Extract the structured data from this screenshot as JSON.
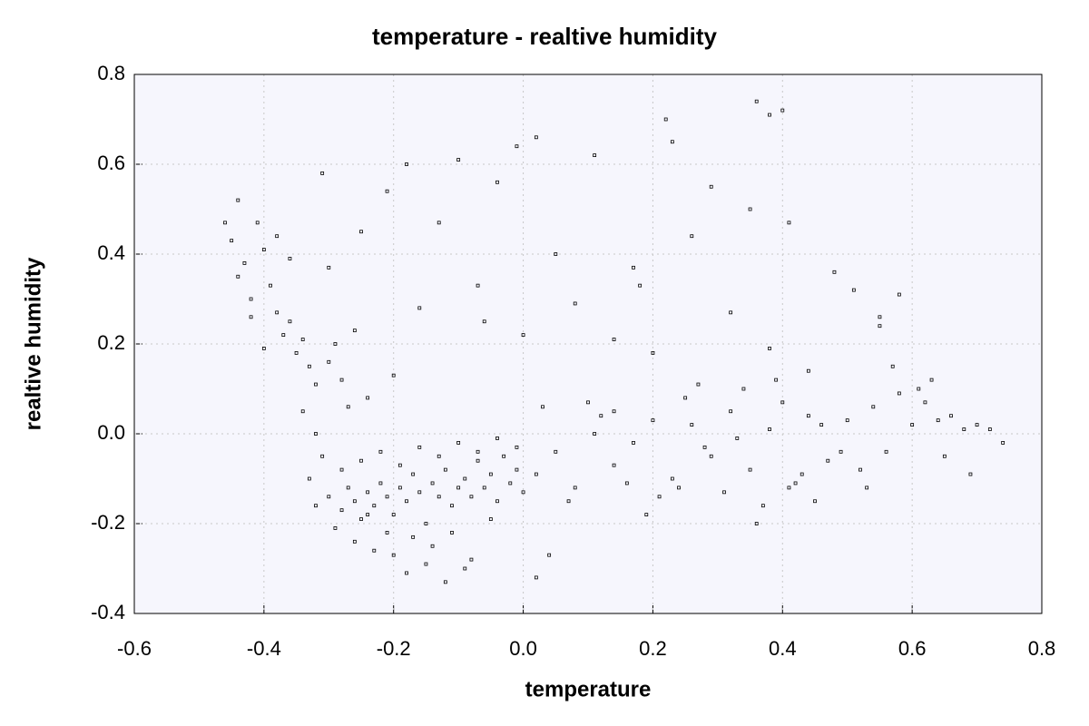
{
  "chart_data": {
    "type": "scatter",
    "title": "temperature - realtive humidity",
    "x_label": "temperature",
    "y_label": "realtive humidity",
    "color": "#000000",
    "grid": true,
    "xlim": [
      -0.6,
      0.8
    ],
    "ylim": [
      -0.4,
      0.8
    ],
    "xticks": [
      -0.6,
      -0.4,
      -0.2,
      {
        "value": 0,
        "label": "0.0"
      },
      0.2,
      0.4,
      0.6,
      0.8
    ],
    "yticks": [
      -0.4,
      -0.2,
      {
        "value": 0,
        "label": "0.0"
      },
      0.2,
      0.4,
      0.6,
      0.8
    ],
    "x": [
      -0.3,
      -0.28,
      -0.27,
      -0.26,
      -0.25,
      -0.24,
      -0.23,
      -0.22,
      -0.21,
      -0.2,
      -0.19,
      -0.18,
      -0.17,
      -0.16,
      -0.15,
      -0.14,
      -0.13,
      -0.12,
      -0.11,
      -0.1,
      -0.09,
      -0.08,
      -0.07,
      -0.06,
      -0.05,
      -0.04,
      -0.03,
      -0.02,
      -0.01,
      0.0,
      -0.32,
      -0.29,
      -0.26,
      -0.23,
      -0.2,
      -0.17,
      -0.14,
      -0.11,
      -0.08,
      -0.05,
      -0.28,
      -0.25,
      -0.22,
      -0.19,
      -0.16,
      -0.13,
      -0.1,
      -0.07,
      -0.04,
      -0.01,
      -0.33,
      -0.31,
      -0.24,
      -0.21,
      -0.18,
      -0.15,
      -0.12,
      -0.09,
      0.02,
      0.04,
      0.02,
      0.05,
      0.08,
      0.11,
      0.14,
      0.17,
      0.2,
      0.23,
      0.26,
      0.29,
      0.32,
      0.35,
      0.38,
      0.41,
      0.44,
      0.47,
      0.03,
      0.07,
      0.12,
      0.16,
      0.21,
      0.25,
      0.28,
      0.31,
      0.34,
      0.37,
      0.4,
      0.43,
      0.46,
      0.49,
      0.1,
      0.14,
      0.19,
      0.24,
      0.27,
      0.33,
      0.36,
      0.39,
      0.42,
      0.45,
      0.5,
      0.52,
      0.54,
      0.56,
      0.58,
      0.6,
      0.62,
      0.64,
      0.66,
      0.68,
      0.7,
      0.72,
      0.74,
      0.53,
      0.57,
      0.61,
      0.65,
      0.69,
      0.55,
      0.63,
      -0.46,
      -0.45,
      -0.44,
      -0.43,
      -0.42,
      -0.41,
      -0.4,
      -0.39,
      -0.38,
      -0.37,
      -0.36,
      -0.35,
      -0.34,
      -0.33,
      -0.32,
      -0.31,
      -0.3,
      -0.29,
      -0.28,
      -0.27,
      -0.44,
      -0.42,
      -0.4,
      -0.38,
      -0.36,
      -0.34,
      -0.32,
      -0.3,
      -0.26,
      -0.24,
      -0.25,
      -0.21,
      -0.18,
      -0.16,
      -0.13,
      -0.1,
      -0.07,
      -0.04,
      -0.01,
      0.02,
      0.05,
      0.08,
      0.11,
      0.14,
      0.17,
      0.2,
      0.23,
      0.26,
      0.29,
      0.32,
      0.35,
      0.38,
      0.41,
      0.44,
      0.48,
      0.51,
      0.55,
      0.58,
      0.36,
      0.38,
      0.4,
      -0.2,
      0.0,
      0.18,
      -0.06,
      0.22
    ],
    "y": [
      -0.14,
      -0.17,
      -0.12,
      -0.15,
      -0.19,
      -0.13,
      -0.16,
      -0.11,
      -0.14,
      -0.18,
      -0.12,
      -0.15,
      -0.09,
      -0.13,
      -0.2,
      -0.11,
      -0.14,
      -0.08,
      -0.16,
      -0.12,
      -0.1,
      -0.14,
      -0.06,
      -0.12,
      -0.09,
      -0.15,
      -0.05,
      -0.11,
      -0.08,
      -0.13,
      -0.16,
      -0.21,
      -0.24,
      -0.26,
      -0.27,
      -0.23,
      -0.25,
      -0.22,
      -0.28,
      -0.19,
      -0.08,
      -0.06,
      -0.04,
      -0.07,
      -0.03,
      -0.05,
      -0.02,
      -0.04,
      -0.01,
      -0.03,
      -0.1,
      -0.05,
      -0.18,
      -0.22,
      -0.31,
      -0.29,
      -0.33,
      -0.3,
      -0.32,
      -0.27,
      -0.09,
      -0.04,
      -0.12,
      0.0,
      -0.07,
      -0.02,
      0.03,
      -0.1,
      0.02,
      -0.05,
      0.05,
      -0.08,
      0.01,
      -0.12,
      0.04,
      -0.06,
      0.06,
      -0.15,
      0.04,
      -0.11,
      -0.14,
      0.08,
      -0.03,
      -0.13,
      0.1,
      -0.16,
      0.07,
      -0.09,
      0.02,
      -0.04,
      0.07,
      0.05,
      -0.18,
      -0.12,
      0.11,
      -0.01,
      -0.2,
      0.12,
      -0.11,
      -0.15,
      0.03,
      -0.08,
      0.06,
      -0.04,
      0.09,
      0.02,
      0.07,
      0.03,
      0.04,
      0.01,
      0.02,
      0.01,
      -0.02,
      -0.12,
      0.15,
      0.1,
      -0.05,
      -0.09,
      0.26,
      0.12,
      0.47,
      0.43,
      0.52,
      0.38,
      0.3,
      0.47,
      0.41,
      0.33,
      0.27,
      0.22,
      0.25,
      0.18,
      0.21,
      0.15,
      0.11,
      0.58,
      0.37,
      0.2,
      0.12,
      0.06,
      0.35,
      0.26,
      0.19,
      0.44,
      0.39,
      0.05,
      0.0,
      0.16,
      0.23,
      0.08,
      0.45,
      0.54,
      0.6,
      0.28,
      0.47,
      0.61,
      0.33,
      0.56,
      0.64,
      0.66,
      0.4,
      0.29,
      0.62,
      0.21,
      0.37,
      0.18,
      0.65,
      0.44,
      0.55,
      0.27,
      0.5,
      0.19,
      0.47,
      0.14,
      0.36,
      0.32,
      0.24,
      0.31,
      0.74,
      0.71,
      0.72,
      0.13,
      0.22,
      0.33,
      0.25,
      0.7
    ]
  }
}
